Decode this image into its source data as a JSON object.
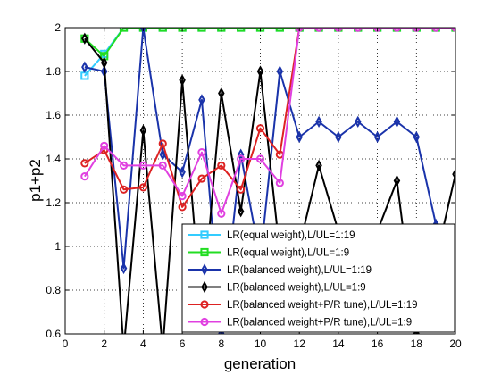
{
  "chart_data": {
    "type": "line",
    "xlabel": "generation",
    "ylabel": "p1+p2",
    "xlim": [
      0,
      20
    ],
    "ylim": [
      0.6,
      2
    ],
    "xticks": [
      0,
      2,
      4,
      6,
      8,
      10,
      12,
      14,
      16,
      18,
      20
    ],
    "yticks": [
      0.6,
      0.8,
      1,
      1.2,
      1.4,
      1.6,
      1.8,
      2
    ],
    "ytick_labels": [
      "0.6",
      "0.8",
      "1",
      "1.2",
      "1.4",
      "1.6",
      "1.8",
      "2"
    ],
    "grid": true,
    "legend_position": "bottom-right",
    "series": [
      {
        "name": "LR(equal weight),L/UL=1:19",
        "color": "#33ccff",
        "marker": "square",
        "x": [
          1,
          2,
          3,
          4,
          5,
          6,
          7,
          8,
          9,
          10,
          11,
          12,
          13,
          14,
          15,
          16,
          17,
          18,
          19,
          20
        ],
        "y": [
          1.78,
          1.88,
          2,
          2,
          2,
          2,
          2,
          2,
          2,
          2,
          2,
          2,
          2,
          2,
          2,
          2,
          2,
          2,
          2,
          2
        ]
      },
      {
        "name": "LR(equal weight),L/UL=1:9",
        "color": "#22dd22",
        "marker": "square",
        "x": [
          1,
          2,
          3,
          4,
          5,
          6,
          7,
          8,
          9,
          10,
          11,
          12,
          13,
          14,
          15,
          16,
          17,
          18,
          19,
          20
        ],
        "y": [
          1.95,
          1.87,
          2,
          2,
          2,
          2,
          2,
          2,
          2,
          2,
          2,
          2,
          2,
          2,
          2,
          2,
          2,
          2,
          2,
          2
        ]
      },
      {
        "name": "LR(balanced weight),L/UL=1:19",
        "color": "#1a33aa",
        "marker": "diamond",
        "x": [
          1,
          2,
          3,
          4,
          5,
          6,
          7,
          8,
          9,
          10,
          11,
          12,
          13,
          14,
          15,
          16,
          17,
          18,
          19,
          20
        ],
        "y": [
          1.82,
          1.8,
          0.9,
          2,
          1.42,
          1.34,
          1.67,
          0.6,
          1.42,
          0.94,
          1.8,
          1.5,
          1.57,
          1.5,
          1.57,
          1.5,
          1.57,
          1.5,
          1.1,
          0.8
        ]
      },
      {
        "name": "LR(balanced weight),L/UL=1:9",
        "color": "#000000",
        "marker": "diamond",
        "x": [
          1,
          2,
          3,
          4,
          5,
          6,
          7,
          8,
          9,
          10,
          11,
          12,
          13,
          14,
          15,
          16,
          17,
          18,
          19,
          20
        ],
        "y": [
          1.95,
          1.84,
          0.53,
          1.53,
          0.53,
          1.76,
          0.68,
          1.7,
          1.16,
          1.8,
          0.97,
          1.0,
          1.37,
          1.07,
          0.93,
          1.07,
          1.3,
          0.6,
          0.94,
          1.33
        ]
      },
      {
        "name": "LR(balanced weight+P/R tune),L/UL=1:19",
        "color": "#dd2222",
        "marker": "circle",
        "x": [
          1,
          2,
          3,
          4,
          5,
          6,
          7,
          8,
          9,
          10,
          11,
          12,
          13,
          14,
          15,
          16,
          17,
          18,
          19,
          20
        ],
        "y": [
          1.38,
          1.44,
          1.26,
          1.27,
          1.47,
          1.18,
          1.31,
          1.37,
          1.26,
          1.54,
          1.42,
          2,
          2,
          2,
          2,
          2,
          2,
          2,
          2,
          2
        ]
      },
      {
        "name": "LR(balanced weight+P/R tune),L/UL=1:9",
        "color": "#e040e0",
        "marker": "circle",
        "x": [
          1,
          2,
          3,
          4,
          5,
          6,
          7,
          8,
          9,
          10,
          11,
          12,
          13,
          14,
          15,
          16,
          17,
          18,
          19,
          20
        ],
        "y": [
          1.32,
          1.46,
          1.37,
          1.37,
          1.37,
          1.23,
          1.43,
          1.15,
          1.4,
          1.4,
          1.29,
          2,
          2,
          2,
          2,
          2,
          2,
          2,
          2,
          2
        ]
      }
    ]
  }
}
